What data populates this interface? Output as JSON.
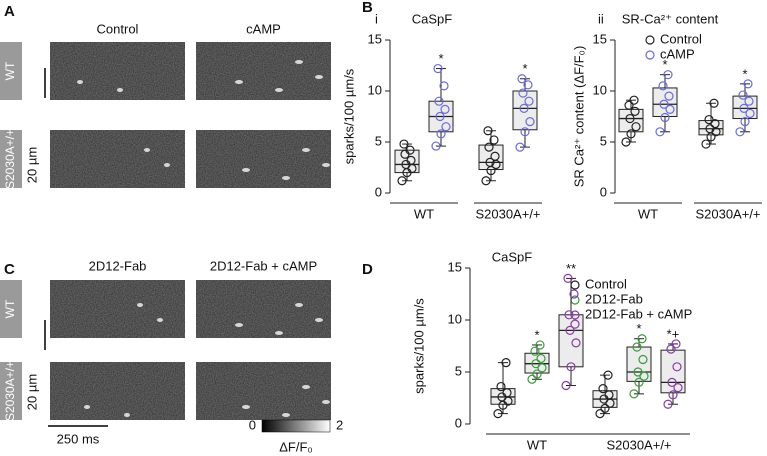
{
  "image_panels": [
    {
      "letter": "A",
      "columns": [
        "Control",
        "cAMP"
      ],
      "rows": [
        "WT",
        "S2030A+/+"
      ],
      "scale_bar": "20 µm"
    },
    {
      "letter": "C",
      "columns": [
        "2D12-Fab",
        "2D12-Fab + cAMP"
      ],
      "rows": [
        "WT",
        "S2030A+/+"
      ],
      "scale_bar": "20 µm",
      "time_bar": "250 ms",
      "colorbar": {
        "min": 0,
        "max": 2,
        "label": "ΔF/F₀"
      }
    }
  ],
  "chart_data": [
    {
      "type": "box",
      "panel": "B",
      "subpanel": "i",
      "title": "CaSpF",
      "ylabel": "sparks/100 µm/s",
      "groups": [
        "WT",
        "S2030A+/+"
      ],
      "ylim": [
        0,
        15
      ],
      "yticks": [
        0,
        5,
        10,
        15
      ],
      "series": [
        {
          "color": "#222222",
          "boxes": [
            {
              "min": 1.2,
              "q1": 2,
              "median": 2.8,
              "q3": 4.2,
              "max": 4.8,
              "points": [
                1.2,
                2,
                2.4,
                2.8,
                3.2,
                3.8,
                4.2,
                4.8
              ]
            },
            {
              "min": 1.2,
              "q1": 2.3,
              "median": 3,
              "q3": 4.7,
              "max": 6.1,
              "points": [
                1.2,
                2.2,
                2.8,
                3,
                3.6,
                4.5,
                5.2,
                6.1
              ]
            }
          ],
          "marks": [
            null,
            null
          ]
        },
        {
          "color": "#6b6bd6",
          "boxes": [
            {
              "min": 4.6,
              "q1": 6,
              "median": 7.5,
              "q3": 9,
              "max": 12.2,
              "points": [
                4.6,
                5.8,
                6.5,
                7.5,
                8.2,
                9,
                10.5,
                12.2
              ]
            },
            {
              "min": 4.5,
              "q1": 6.2,
              "median": 8.3,
              "q3": 10,
              "max": 11.2,
              "points": [
                4.5,
                6,
                7,
                8.3,
                9,
                9.8,
                10.6,
                11.2
              ]
            }
          ],
          "marks": [
            "*",
            "*"
          ]
        }
      ]
    },
    {
      "type": "box",
      "panel": null,
      "subpanel": "ii",
      "title": "SR-Ca²⁺ content",
      "ylabel": "SR Ca²⁺ content (ΔF/F₀)",
      "groups": [
        "WT",
        "S2030A+/+"
      ],
      "ylim": [
        0,
        15
      ],
      "yticks": [
        0,
        5,
        10,
        15
      ],
      "legend": true,
      "series": [
        {
          "name": "Control",
          "color": "#222222",
          "boxes": [
            {
              "min": 5,
              "q1": 6,
              "median": 7.3,
              "q3": 8.2,
              "max": 9.1,
              "points": [
                5,
                5.8,
                6.5,
                7.3,
                8,
                8.6,
                9.1
              ]
            },
            {
              "min": 4.8,
              "q1": 5.7,
              "median": 6.3,
              "q3": 7.1,
              "max": 8.8,
              "points": [
                4.8,
                5.5,
                6,
                6.3,
                6.8,
                7.2,
                8.8
              ]
            }
          ],
          "marks": [
            null,
            null
          ]
        },
        {
          "name": "cAMP",
          "color": "#6b6bd6",
          "boxes": [
            {
              "min": 6,
              "q1": 7.5,
              "median": 8.7,
              "q3": 10.3,
              "max": 11.6,
              "points": [
                6,
                7.4,
                8.2,
                8.7,
                9.5,
                10.5,
                11.6
              ]
            },
            {
              "min": 6,
              "q1": 7.3,
              "median": 8.3,
              "q3": 9.5,
              "max": 10.7,
              "points": [
                6,
                7,
                7.8,
                8.3,
                9,
                9.6,
                10.7
              ]
            }
          ],
          "marks": [
            "*",
            "*"
          ]
        }
      ]
    },
    {
      "type": "box",
      "panel": "D",
      "title": "CaSpF",
      "ylabel": "sparks/100 µm/s",
      "groups": [
        "WT",
        "S2030A+/+"
      ],
      "ylim": [
        0,
        15
      ],
      "yticks": [
        0,
        5,
        10,
        15
      ],
      "legend": true,
      "series": [
        {
          "name": "Control",
          "color": "#222222",
          "boxes": [
            {
              "min": 1,
              "q1": 1.9,
              "median": 2.6,
              "q3": 3.4,
              "max": 5.9,
              "points": [
                1,
                1.8,
                2.2,
                2.6,
                3,
                3.6,
                5.9
              ]
            },
            {
              "min": 1,
              "q1": 1.6,
              "median": 2.4,
              "q3": 3.2,
              "max": 4.7,
              "points": [
                1,
                1.5,
                2,
                2.4,
                2.8,
                3.4,
                4.7
              ]
            }
          ],
          "marks": [
            null,
            null
          ]
        },
        {
          "name": "2D12-Fab",
          "color": "#3a9a3a",
          "boxes": [
            {
              "min": 4.3,
              "q1": 4.9,
              "median": 5.8,
              "q3": 6.8,
              "max": 7.6,
              "points": [
                4.3,
                4.8,
                5.4,
                5.8,
                6.3,
                7,
                7.6
              ]
            },
            {
              "min": 2.9,
              "q1": 4.1,
              "median": 5,
              "q3": 7.4,
              "max": 8.2,
              "points": [
                2.9,
                4,
                4.6,
                5,
                6.2,
                7.4,
                8.2
              ]
            }
          ],
          "marks": [
            "*",
            "*"
          ]
        },
        {
          "name": "2D12-Fab + cAMP",
          "color": "#8a3aa8",
          "boxes": [
            {
              "min": 3.7,
              "q1": 5.5,
              "median": 9,
              "q3": 10.5,
              "max": 14,
              "points": [
                3.7,
                5.5,
                7.8,
                9,
                9.6,
                10.5,
                12.5,
                14
              ]
            },
            {
              "min": 1.9,
              "q1": 3,
              "median": 4,
              "q3": 7.1,
              "max": 7.7,
              "points": [
                1.9,
                2.8,
                3.5,
                4,
                5.5,
                7.2,
                7.7
              ]
            }
          ],
          "marks": [
            "**",
            "*+"
          ]
        }
      ]
    }
  ]
}
